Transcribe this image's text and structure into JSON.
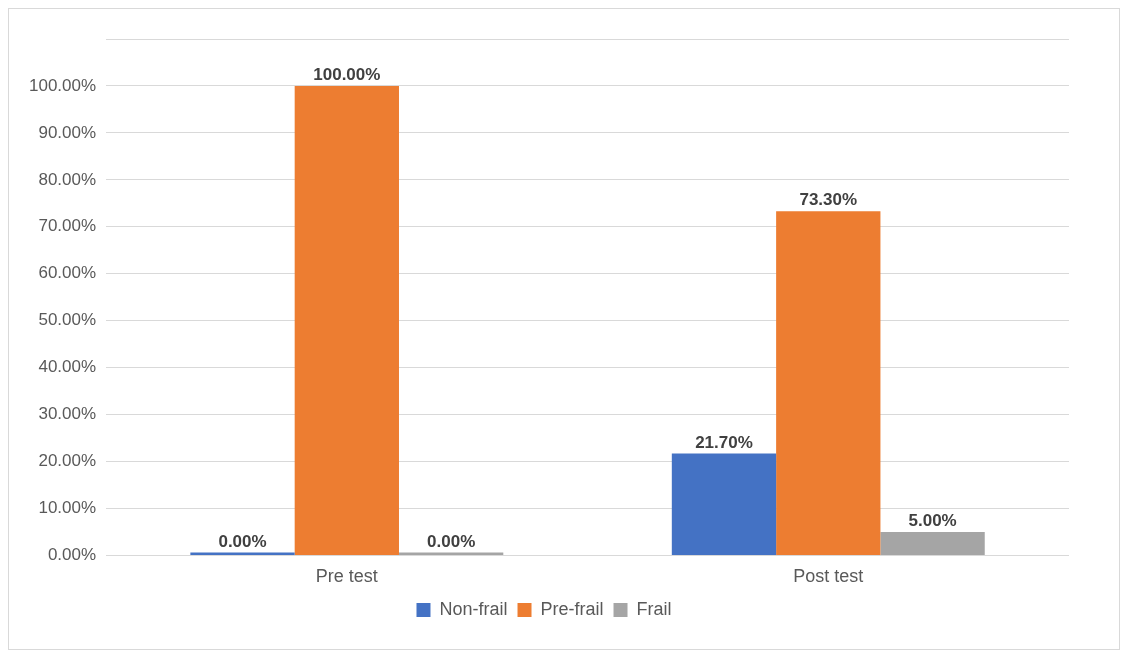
{
  "chart_data": {
    "type": "bar",
    "categories": [
      "Pre test",
      "Post test"
    ],
    "series": [
      {
        "name": "Non-frail",
        "color": "#4472c4",
        "values": [
          0,
          21.7
        ],
        "value_labels": [
          "0.00%",
          "21.70%"
        ]
      },
      {
        "name": "Pre-frail",
        "color": "#ed7d31",
        "values": [
          100,
          73.3
        ],
        "value_labels": [
          "100.00%",
          "73.30%"
        ]
      },
      {
        "name": "Frail",
        "color": "#a5a5a5",
        "values": [
          0,
          5
        ],
        "value_labels": [
          "0.00%",
          "5.00%"
        ]
      }
    ],
    "ylim": [
      0,
      110
    ],
    "yticks": [
      {
        "value": 0,
        "label": "0.00%"
      },
      {
        "value": 10,
        "label": "10.00%"
      },
      {
        "value": 20,
        "label": "20.00%"
      },
      {
        "value": 30,
        "label": "30.00%"
      },
      {
        "value": 40,
        "label": "40.00%"
      },
      {
        "value": 50,
        "label": "50.00%"
      },
      {
        "value": 60,
        "label": "60.00%"
      },
      {
        "value": 70,
        "label": "70.00%"
      },
      {
        "value": 80,
        "label": "80.00%"
      },
      {
        "value": 90,
        "label": "90.00%"
      },
      {
        "value": 100,
        "label": "100.00%"
      },
      {
        "value": 110,
        "label": null
      }
    ],
    "grid": "y",
    "legend": "bottom"
  }
}
